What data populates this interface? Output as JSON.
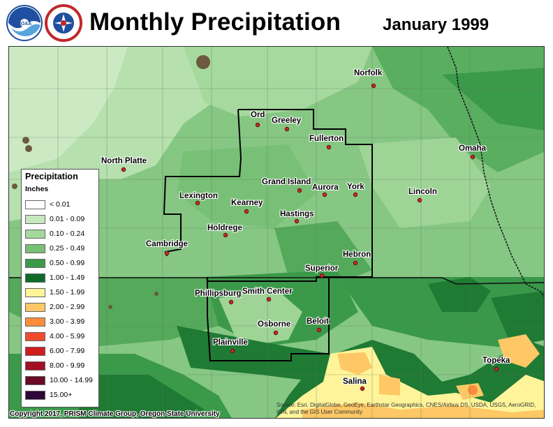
{
  "header": {
    "title": "Monthly Precipitation",
    "date": "January 1999"
  },
  "logos": {
    "noaa_icon": "noaa-logo",
    "nws_icon": "nws-logo",
    "noaa_text": "NOAA",
    "nws_text": "NATIONAL WEATHER SERVICE"
  },
  "legend": {
    "title": "Precipitation",
    "units": "Inches",
    "items": [
      {
        "label": "< 0.01",
        "color": "#ffffff"
      },
      {
        "label": "0.01 - 0.09",
        "color": "#c8e8c0"
      },
      {
        "label": "0.10 - 0.24",
        "color": "#a4d89c"
      },
      {
        "label": "0.25 - 0.49",
        "color": "#78c076"
      },
      {
        "label": "0.50 - 0.99",
        "color": "#3a9a4a"
      },
      {
        "label": "1.00 - 1.49",
        "color": "#0f6a2a"
      },
      {
        "label": "1.50 - 1.99",
        "color": "#fff49a"
      },
      {
        "label": "2.00 - 2.99",
        "color": "#fdc865"
      },
      {
        "label": "3.00 - 3.99",
        "color": "#fb8d3c"
      },
      {
        "label": "4.00 - 5.99",
        "color": "#f14a2c"
      },
      {
        "label": "6.00 - 7.99",
        "color": "#d01d1d"
      },
      {
        "label": "8.00 - 9.99",
        "color": "#a30f25"
      },
      {
        "label": "10.00 - 14.99",
        "color": "#6a0a25"
      },
      {
        "label": "15.00+",
        "color": "#2e0838"
      }
    ]
  },
  "cities": [
    {
      "name": "Norfolk"
    },
    {
      "name": "Ord"
    },
    {
      "name": "Greeley"
    },
    {
      "name": "Fullerton"
    },
    {
      "name": "North Platte"
    },
    {
      "name": "Omaha"
    },
    {
      "name": "Grand Island"
    },
    {
      "name": "Aurora"
    },
    {
      "name": "York"
    },
    {
      "name": "Lexington"
    },
    {
      "name": "Kearney"
    },
    {
      "name": "Lincoln"
    },
    {
      "name": "Hastings"
    },
    {
      "name": "Holdrege"
    },
    {
      "name": "Cambridge"
    },
    {
      "name": "Hebron"
    },
    {
      "name": "Superior"
    },
    {
      "name": "Phillipsburg"
    },
    {
      "name": "Smith Center"
    },
    {
      "name": "Osborne"
    },
    {
      "name": "Beloit"
    },
    {
      "name": "Plainville"
    },
    {
      "name": "Topeka"
    },
    {
      "name": "Salina"
    }
  ],
  "footer": {
    "copyright": "Copyright 2017, PRISM Climate Group, Oregon State University",
    "source_line1": "Source: Esri, DigitalGlobe, GeoEye, Earthstar Geographics, CNES/Airbus DS, USDA, USGS, AeroGRID,",
    "source_line2": "IGN, and the GIS User Community"
  }
}
